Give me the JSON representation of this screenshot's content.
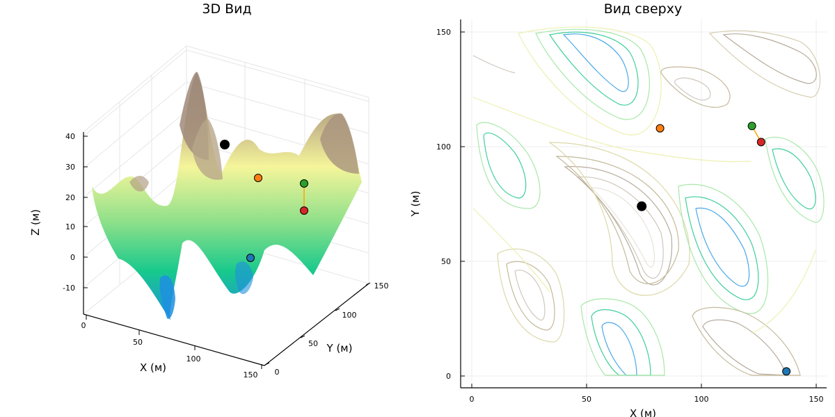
{
  "chart_data": [
    {
      "type": "surface",
      "title": "3D Вид",
      "xlabel": "X (м)",
      "ylabel": "Y (м)",
      "zlabel": "Z (м)",
      "xlim": [
        0,
        150
      ],
      "ylim": [
        0,
        150
      ],
      "zlim": [
        -18,
        42
      ],
      "x_ticks": [
        "0",
        "50",
        "100",
        "150"
      ],
      "y_ticks": [
        "0",
        "50",
        "100",
        "150"
      ],
      "z_ticks": [
        "-10",
        "0",
        "10",
        "20",
        "30",
        "40"
      ],
      "grid": true,
      "colormap": [
        "#1f8fe0",
        "#18c98c",
        "#8fe08a",
        "#f5f59a",
        "#c8b98a",
        "#9a8676",
        "#e8e4dc"
      ],
      "points": [
        {
          "color": "#000000",
          "x": 74,
          "y": 74,
          "z": 36
        },
        {
          "color": "#ff7f0e",
          "x": 82,
          "y": 108,
          "z": 26
        },
        {
          "color": "#2ca02c",
          "x": 122,
          "y": 109,
          "z": 24
        },
        {
          "color": "#d62728",
          "x": 126,
          "y": 102,
          "z": 15
        },
        {
          "color": "#1f77b4",
          "x": 137,
          "y": 2,
          "z": 0
        }
      ],
      "segment": {
        "from": 2,
        "to": 3,
        "color": "#ffa500"
      }
    },
    {
      "type": "contour",
      "title": "Вид сверху",
      "xlabel": "X (м)",
      "ylabel": "Y (м)",
      "xlim": [
        -5,
        155
      ],
      "ylim": [
        -5,
        155
      ],
      "x_ticks": [
        "0",
        "50",
        "100",
        "150"
      ],
      "y_ticks": [
        "0",
        "50",
        "100",
        "150"
      ],
      "grid": true,
      "points": [
        {
          "color": "#000000",
          "x": 74,
          "y": 74
        },
        {
          "color": "#ff7f0e",
          "x": 82,
          "y": 108
        },
        {
          "color": "#2ca02c",
          "x": 122,
          "y": 109
        },
        {
          "color": "#d62728",
          "x": 126,
          "y": 102
        },
        {
          "color": "#1f77b4",
          "x": 137,
          "y": 2
        }
      ],
      "segment": {
        "from": 2,
        "to": 3,
        "color": "#ffa500"
      }
    }
  ]
}
